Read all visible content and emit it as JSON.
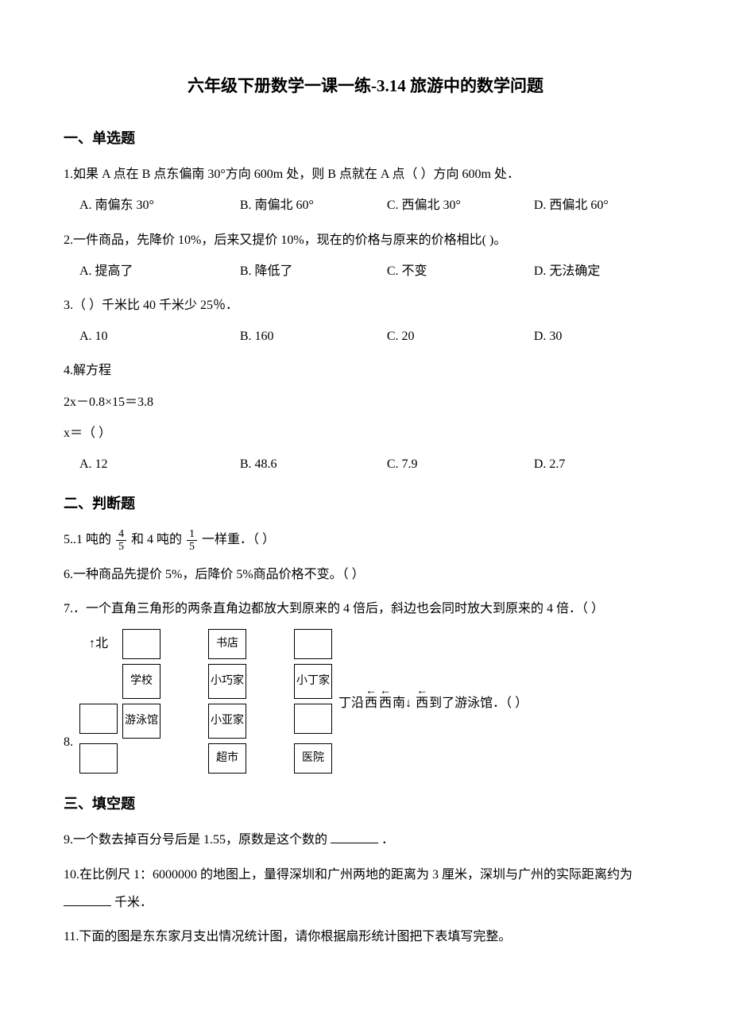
{
  "title": "六年级下册数学一课一练-3.14 旅游中的数学问题",
  "sections": {
    "s1": {
      "header": "一、单选题",
      "q1": {
        "text": "1.如果 A 点在 B 点东偏南 30°方向 600m 处，则 B 点就在 A 点（  ）方向 600m 处．",
        "optA": "A. 南偏东 30°",
        "optB": "B. 南偏北 60°",
        "optC": "C. 西偏北 30°",
        "optD": "D. 西偏北 60°"
      },
      "q2": {
        "text": "2.一件商品，先降价 10%，后来又提价 10%，现在的价格与原来的价格相比(    )。",
        "optA": "A. 提高了",
        "optB": "B. 降低了",
        "optC": "C. 不变",
        "optD": "D. 无法确定"
      },
      "q3": {
        "text": "3.（  ）千米比 40 千米少 25％．",
        "optA": "A. 10",
        "optB": "B. 160",
        "optC": "C. 20",
        "optD": "D. 30"
      },
      "q4": {
        "text": "4.解方程",
        "eq1": "2x－0.8×15＝3.8",
        "eq2": "x＝（  ）",
        "optA": "A. 12",
        "optB": "B. 48.6",
        "optC": "C. 7.9",
        "optD": "D. 2.7"
      }
    },
    "s2": {
      "header": "二、判断题",
      "q5": {
        "prefix": "5..1 吨的 ",
        "f1num": "4",
        "f1den": "5",
        "mid": "和 4 吨的 ",
        "f2num": "1",
        "f2den": "5",
        "suffix": "一样重．（  ）"
      },
      "q6": "6.一种商品先提价 5%，后降价 5%商品价格不变。（  ）",
      "q7": "7.．一个直角三角形的两条直角边都放大到原来的 4 倍后，斜边也会同时放大到原来的 4 倍．（  ）",
      "q8": {
        "num": "8.",
        "compass": "↑北",
        "cells": {
          "bookstore": "书店",
          "school": "学校",
          "xiaoqiao": "小巧家",
          "xiaoding": "小丁家",
          "pool": "游泳馆",
          "xiaoya": "小亚家",
          "market": "超市",
          "hospital": "医院"
        },
        "trail_prefix": "丁沿 ",
        "trail_suffix": "到了游泳馆．（  ）",
        "dirs": {
          "w1": "西",
          "w2": "西",
          "s": "南",
          "w3": "西"
        },
        "arrows": {
          "left": "←",
          "down": "↓"
        }
      }
    },
    "s3": {
      "header": "三、填空题",
      "q9": {
        "prefix": "9.一个数去掉百分号后是 1.55，原数是这个数的",
        "suffix": "．"
      },
      "q10": {
        "prefix": "10.在比例尺 1：6000000 的地图上，量得深圳和广州两地的距离为 3 厘米，深圳与广州的实际距离约为",
        "suffix": "千米．"
      },
      "q11": "11.下面的图是东东家月支出情况统计图，请你根据扇形统计图把下表填写完整。"
    }
  }
}
